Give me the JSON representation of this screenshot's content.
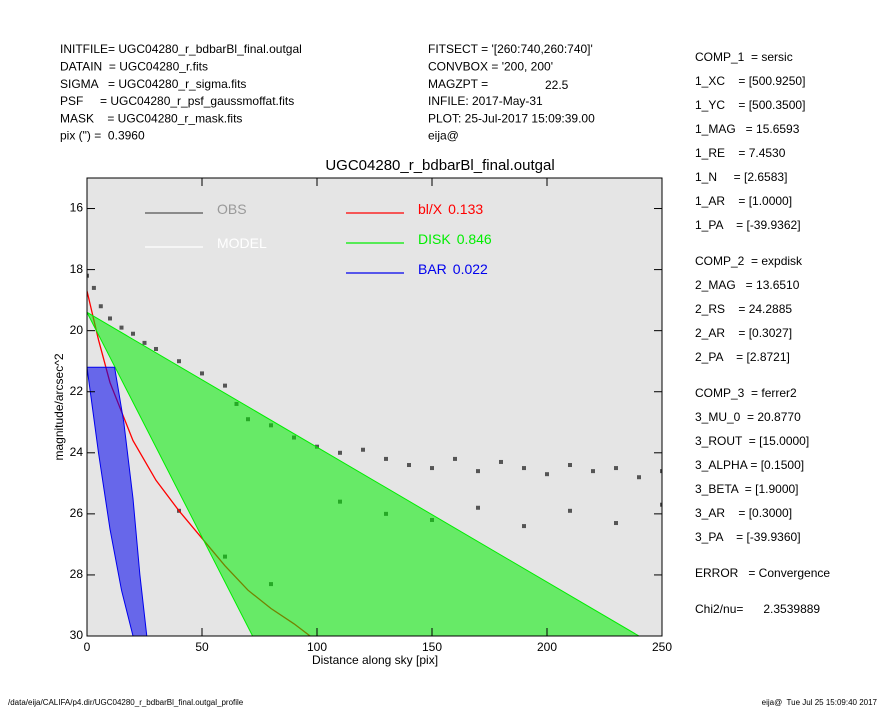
{
  "header": {
    "left": [
      "INITFILE= UGC04280_r_bdbarBl_final.outgal",
      "DATAIN  = UGC04280_r.fits",
      "SIGMA   = UGC04280_r_sigma.fits",
      "PSF     = UGC04280_r_psf_gaussmoffat.fits",
      "MASK    = UGC04280_r_mask.fits",
      "pix (\") =  0.3960"
    ],
    "middle": [
      "FITSECT = '[260:740,260:740]'",
      "CONVBOX = '200, 200'",
      "MAGZPT =",
      "INFILE: 2017-May-31",
      "PLOT: 25-Jul-2017 15:09:39.00",
      "eija@"
    ],
    "magzpt": "22.5"
  },
  "params": [
    [
      "COMP_1  = sersic",
      "1_XC    = [500.9250]",
      "1_YC    = [500.3500]",
      "1_MAG   = 15.6593",
      "1_RE    = 7.4530",
      "1_N     = [2.6583]",
      "1_AR    = [1.0000]",
      "1_PA    = [-39.9362]"
    ],
    [
      "COMP_2  = expdisk",
      "2_MAG   = 13.6510",
      "2_RS    = 24.2885",
      "2_AR    = [0.3027]",
      "2_PA    = [2.8721]"
    ],
    [
      "COMP_3  = ferrer2",
      "3_MU_0  = 20.8770",
      "3_ROUT  = [15.0000]",
      "3_ALPHA = [0.1500]",
      "3_BETA  = [1.9000]",
      "3_AR    = [0.3000]",
      "3_PA    = [-39.9360]"
    ],
    [
      "ERROR   = Convergence"
    ],
    [
      "Chi2/nu=      2.3539889"
    ]
  ],
  "footer": {
    "left": "/data/eija/CALIFA/p4.dir/UGC04280_r_bdbarBl_final.outgal_profile",
    "right": "eija@  Tue Jul 25 15:09:40 2017"
  },
  "chart_data": {
    "type": "scatter",
    "title": "UGC04280_r_bdbarBl_final.outgal",
    "xlabel": "Distance along sky [pix]",
    "ylabel": "magnitude/arcsec^2",
    "xlim": [
      0,
      250
    ],
    "ylim": [
      30,
      15
    ],
    "xticks": [
      0,
      50,
      100,
      150,
      200,
      250
    ],
    "yticks": [
      16,
      18,
      20,
      22,
      24,
      26,
      28,
      30
    ],
    "series": [
      {
        "name": "OBS",
        "color": "#555555",
        "kind": "points",
        "x": [
          0,
          3,
          6,
          10,
          15,
          20,
          25,
          30,
          40,
          50,
          60,
          65,
          70,
          80,
          90,
          100,
          110,
          120,
          130,
          140,
          150,
          160,
          170,
          180,
          190,
          200,
          210,
          220,
          230,
          240,
          250,
          110,
          130,
          150,
          170,
          190,
          210,
          230,
          250,
          60,
          80,
          40
        ],
        "values": [
          18.2,
          18.6,
          19.2,
          19.6,
          19.9,
          20.1,
          20.4,
          20.6,
          21.0,
          21.4,
          21.8,
          22.4,
          22.9,
          23.1,
          23.5,
          23.8,
          24.0,
          23.9,
          24.2,
          24.4,
          24.5,
          24.2,
          24.6,
          24.3,
          24.5,
          24.7,
          24.4,
          24.6,
          24.5,
          24.8,
          24.6,
          25.6,
          26.0,
          26.2,
          25.8,
          26.4,
          25.9,
          26.3,
          25.7,
          27.4,
          28.3,
          25.9
        ]
      },
      {
        "name": "MODEL",
        "color": "#ffffff",
        "kind": "none"
      },
      {
        "name": "bl/X",
        "fraction": "0.133",
        "color": "#ff0000",
        "kind": "line",
        "x": [
          0,
          5,
          10,
          20,
          30,
          40,
          50,
          60,
          70,
          80,
          90,
          97
        ],
        "values": [
          18.7,
          20.3,
          21.7,
          23.6,
          24.9,
          25.9,
          26.8,
          27.7,
          28.5,
          29.1,
          29.6,
          30
        ]
      },
      {
        "name": "DISK",
        "fraction": "0.846",
        "color": "#00ee00",
        "kind": "band",
        "x": [
          0,
          240
        ],
        "values": [
          19.4,
          30
        ],
        "x_low": [
          0,
          72
        ],
        "values_low": [
          19.4,
          30
        ]
      },
      {
        "name": "BAR",
        "fraction": "0.022",
        "color": "#0000ee",
        "kind": "band",
        "x": [
          0,
          5,
          10,
          15,
          20
        ],
        "values": [
          21.2,
          24,
          26.5,
          28.5,
          30
        ],
        "x_low": [
          12,
          16,
          20,
          23,
          26
        ],
        "values_low": [
          21.2,
          23,
          25.5,
          28,
          30
        ]
      }
    ]
  }
}
